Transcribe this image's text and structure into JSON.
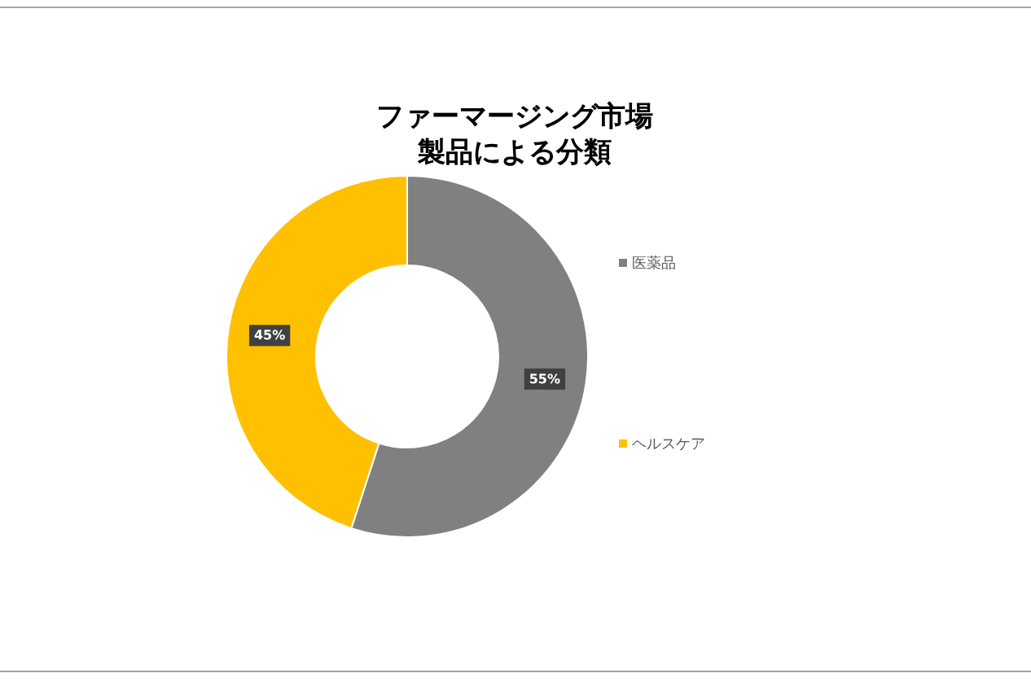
{
  "chart_data": {
    "type": "donut",
    "title": "ファーマージング市場",
    "subtitle": "製品による分類",
    "categories": [
      "医薬品",
      "ヘルスケア"
    ],
    "values": [
      55,
      45
    ],
    "colors": [
      "#808080",
      "#ffc000"
    ],
    "value_labels": [
      "55%",
      "45%"
    ],
    "legend": "right"
  }
}
